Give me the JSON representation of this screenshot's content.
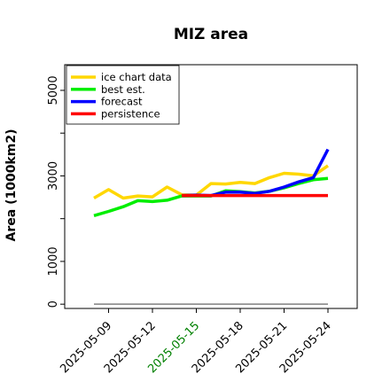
{
  "chart_data": {
    "type": "line",
    "title": "MIZ area",
    "ylabel": "Area (1000km2)",
    "xlabel": "",
    "ylim": [
      -100,
      5600
    ],
    "yticks": [
      0,
      1000,
      3000,
      5000
    ],
    "xticks": [
      "2025-05-09",
      "2025-05-12",
      "2025-05-15",
      "2025-05-18",
      "2025-05-21",
      "2025-05-24"
    ],
    "xtick_colors": [
      "#000000",
      "#000000",
      "#008000",
      "#000000",
      "#000000",
      "#000000"
    ],
    "legend_location": "upper-left",
    "grid": false,
    "baseline": {
      "y": 0,
      "color": "#808080"
    },
    "series": [
      {
        "name": "ice chart data",
        "color": "#FFD700",
        "x": [
          "2025-05-08",
          "2025-05-09",
          "2025-05-10",
          "2025-05-11",
          "2025-05-12",
          "2025-05-13",
          "2025-05-14",
          "2025-05-15",
          "2025-05-16",
          "2025-05-17",
          "2025-05-18",
          "2025-05-19",
          "2025-05-20",
          "2025-05-21",
          "2025-05-22",
          "2025-05-23",
          "2025-05-24"
        ],
        "y": [
          2480,
          2680,
          2480,
          2530,
          2510,
          2740,
          2560,
          2550,
          2820,
          2810,
          2850,
          2820,
          2960,
          3060,
          3040,
          3000,
          3240
        ]
      },
      {
        "name": "best est.",
        "color": "#00EE00",
        "x": [
          "2025-05-08",
          "2025-05-09",
          "2025-05-10",
          "2025-05-11",
          "2025-05-12",
          "2025-05-13",
          "2025-05-14",
          "2025-05-15",
          "2025-05-16",
          "2025-05-17",
          "2025-05-18",
          "2025-05-19",
          "2025-05-20",
          "2025-05-21",
          "2025-05-22",
          "2025-05-23",
          "2025-05-24"
        ],
        "y": [
          2070,
          2170,
          2280,
          2420,
          2400,
          2430,
          2530,
          2530,
          2530,
          2650,
          2630,
          2600,
          2640,
          2720,
          2820,
          2910,
          2940
        ]
      },
      {
        "name": "forecast",
        "color": "#0000FF",
        "x": [
          "2025-05-14",
          "2025-05-15",
          "2025-05-16",
          "2025-05-17",
          "2025-05-18",
          "2025-05-19",
          "2025-05-20",
          "2025-05-21",
          "2025-05-22",
          "2025-05-23",
          "2025-05-24"
        ],
        "y": [
          2540,
          2550,
          2540,
          2620,
          2620,
          2590,
          2640,
          2740,
          2860,
          2960,
          3620
        ]
      },
      {
        "name": "persistence",
        "color": "#FF0000",
        "x": [
          "2025-05-14",
          "2025-05-15",
          "2025-05-16",
          "2025-05-17",
          "2025-05-18",
          "2025-05-19",
          "2025-05-20",
          "2025-05-21",
          "2025-05-22",
          "2025-05-23",
          "2025-05-24"
        ],
        "y": [
          2540,
          2540,
          2540,
          2540,
          2540,
          2540,
          2540,
          2540,
          2540,
          2540,
          2540
        ]
      }
    ]
  }
}
